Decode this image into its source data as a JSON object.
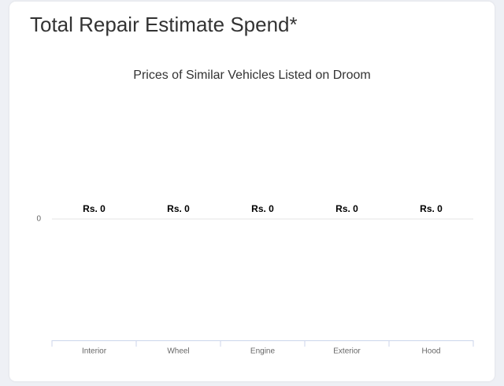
{
  "card": {
    "title": "Total Repair Estimate Spend*"
  },
  "chart_data": {
    "type": "bar",
    "title": "Prices of Similar Vehicles Listed on Droom",
    "categories": [
      "Interior",
      "Wheel",
      "Engine",
      "Exterior",
      "Hood"
    ],
    "values": [
      0,
      0,
      0,
      0,
      0
    ],
    "value_labels": [
      "Rs. 0",
      "Rs. 0",
      "Rs. 0",
      "Rs. 0",
      "Rs. 0"
    ],
    "color": "#7cb5ec",
    "ylim": [
      -1,
      1
    ],
    "yticks": [
      0
    ],
    "grid": true
  }
}
